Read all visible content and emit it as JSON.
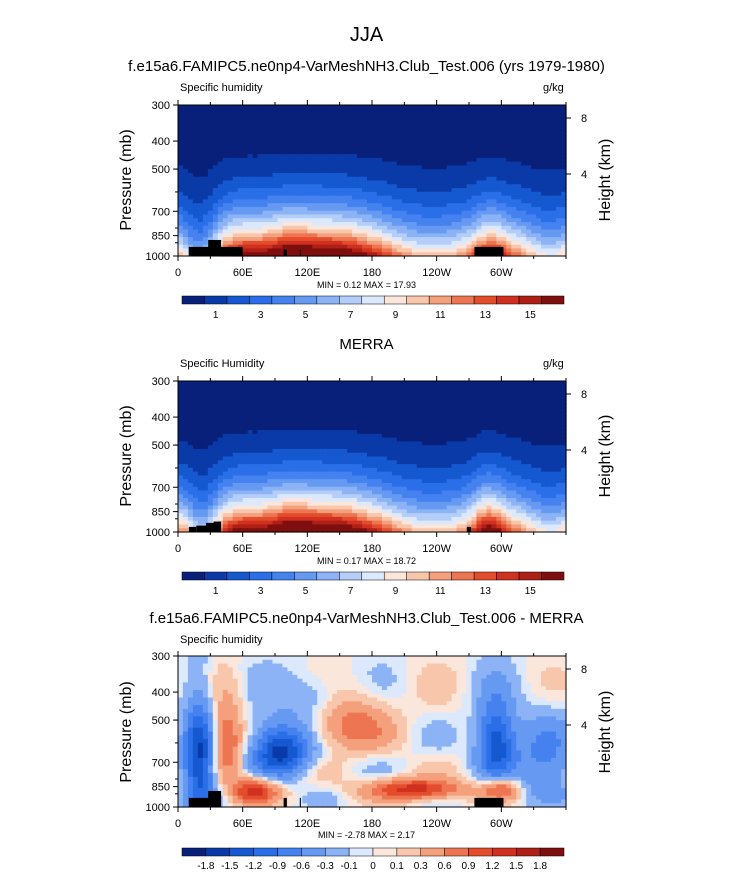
{
  "figure": {
    "title": "JJA"
  },
  "colors": {
    "land": "#000000",
    "abs_levels": [
      0,
      1,
      2,
      3,
      4,
      5,
      6,
      7,
      8,
      9,
      10,
      11,
      12,
      13,
      14,
      15,
      16
    ],
    "abs_palette": [
      "#08207a",
      "#0a3aa8",
      "#1558d0",
      "#2a6ee8",
      "#4582f0",
      "#6699f2",
      "#8cb3f5",
      "#b4cef9",
      "#dce8fc",
      "#fbe6dc",
      "#f8c6ab",
      "#f4a07c",
      "#ee7552",
      "#e44d2c",
      "#cf3020",
      "#ae1f16",
      "#7f0f0e"
    ],
    "diff_levels": [
      -1.8,
      -1.5,
      -1.2,
      -0.9,
      -0.6,
      -0.3,
      -0.1,
      0,
      0.1,
      0.3,
      0.6,
      0.9,
      1.2,
      1.5,
      1.8
    ],
    "diff_palette": [
      "#08207a",
      "#0a3aa8",
      "#1558d0",
      "#2a6ee8",
      "#4582f0",
      "#6699f2",
      "#8cb3f5",
      "#dce8fc",
      "#fbe6dc",
      "#f8c6ab",
      "#f4a07c",
      "#ee7552",
      "#e44d2c",
      "#cf3020",
      "#ae1f16",
      "#7f0f0e"
    ]
  },
  "panels": [
    {
      "id": "model",
      "title": "f.e15a6.FAMIPC5.ne0np4-VarMeshNH3.Club_Test.006 (yrs 1979-1980)",
      "left_label": "Specific humidity",
      "right_label": "g/kg",
      "y_title": "Pressure (mb)",
      "y2_title": "Height (km)",
      "y_ticks": [
        "300",
        "400",
        "500",
        "700",
        "850",
        "1000"
      ],
      "y2_ticks": [
        "8",
        "4"
      ],
      "x_ticks": [
        "0",
        "60E",
        "120E",
        "180",
        "120W",
        "60W"
      ],
      "min_max": "MIN =  0.12  MAX =  17.93",
      "colorbar_labels": [
        "1",
        "3",
        "5",
        "7",
        "9",
        "11",
        "13",
        "15"
      ]
    },
    {
      "id": "obs",
      "title": "MERRA",
      "left_label": "Specific Humidity",
      "right_label": "g/kg",
      "y_title": "Pressure (mb)",
      "y2_title": "Height (km)",
      "y_ticks": [
        "300",
        "400",
        "500",
        "700",
        "850",
        "1000"
      ],
      "y2_ticks": [
        "8",
        "4"
      ],
      "x_ticks": [
        "0",
        "60E",
        "120E",
        "180",
        "120W",
        "60W"
      ],
      "min_max": "MIN =  0.17  MAX =  18.72",
      "colorbar_labels": [
        "1",
        "3",
        "5",
        "7",
        "9",
        "11",
        "13",
        "15"
      ]
    },
    {
      "id": "diff",
      "title": "f.e15a6.FAMIPC5.ne0np4-VarMeshNH3.Club_Test.006 - MERRA",
      "left_label": "Specific humidity",
      "right_label": "",
      "y_title": "Pressure (mb)",
      "y2_title": "Height (km)",
      "y_ticks": [
        "300",
        "400",
        "500",
        "700",
        "850",
        "1000"
      ],
      "y2_ticks": [
        "8",
        "4"
      ],
      "x_ticks": [
        "0",
        "60E",
        "120E",
        "180",
        "120W",
        "60W"
      ],
      "min_max": "MIN =  -2.78  MAX =  2.17",
      "colorbar_labels": [
        "-1.8",
        "-1.5",
        "-1.2",
        "-0.9",
        "-0.6",
        "-0.3",
        "-0.1",
        "0",
        "0.1",
        "0.3",
        "0.6",
        "0.9",
        "1.2",
        "1.5",
        "1.8"
      ]
    }
  ],
  "chart_data": [
    {
      "type": "heatmap",
      "title": "f.e15a6.FAMIPC5.ne0np4-VarMeshNH3.Club_Test.006 (yrs 1979-1980)",
      "variable": "Specific humidity",
      "units": "g/kg",
      "x_ticks": [
        "0",
        "60E",
        "120E",
        "180",
        "120W",
        "60W"
      ],
      "xlim": [
        0,
        360
      ],
      "ylabel": "Pressure (mb)",
      "y_ticks": [
        300,
        400,
        500,
        700,
        850,
        1000
      ],
      "ylim": [
        1000,
        300
      ],
      "y2label": "Height (km)",
      "y2_ticks": [
        8,
        4
      ],
      "min": 0.12,
      "max": 17.93,
      "levels": [
        1,
        2,
        3,
        4,
        5,
        6,
        7,
        8,
        9,
        10,
        11,
        12,
        13,
        14,
        15,
        16
      ],
      "colorbar_labels": [
        1,
        3,
        5,
        7,
        9,
        11,
        13,
        15
      ]
    },
    {
      "type": "heatmap",
      "title": "MERRA",
      "variable": "Specific Humidity",
      "units": "g/kg",
      "x_ticks": [
        "0",
        "60E",
        "120E",
        "180",
        "120W",
        "60W"
      ],
      "xlim": [
        0,
        360
      ],
      "ylabel": "Pressure (mb)",
      "y_ticks": [
        300,
        400,
        500,
        700,
        850,
        1000
      ],
      "ylim": [
        1000,
        300
      ],
      "y2label": "Height (km)",
      "y2_ticks": [
        8,
        4
      ],
      "min": 0.17,
      "max": 18.72,
      "levels": [
        1,
        2,
        3,
        4,
        5,
        6,
        7,
        8,
        9,
        10,
        11,
        12,
        13,
        14,
        15,
        16
      ],
      "colorbar_labels": [
        1,
        3,
        5,
        7,
        9,
        11,
        13,
        15
      ]
    },
    {
      "type": "heatmap",
      "title": "f.e15a6.FAMIPC5.ne0np4-VarMeshNH3.Club_Test.006 - MERRA",
      "variable": "Specific humidity",
      "x_ticks": [
        "0",
        "60E",
        "120E",
        "180",
        "120W",
        "60W"
      ],
      "xlim": [
        0,
        360
      ],
      "ylabel": "Pressure (mb)",
      "y_ticks": [
        300,
        400,
        500,
        700,
        850,
        1000
      ],
      "ylim": [
        1000,
        300
      ],
      "y2label": "Height (km)",
      "y2_ticks": [
        8,
        4
      ],
      "min": -2.78,
      "max": 2.17,
      "levels": [
        -1.8,
        -1.5,
        -1.2,
        -0.9,
        -0.6,
        -0.3,
        -0.1,
        0,
        0.1,
        0.3,
        0.6,
        0.9,
        1.2,
        1.5,
        1.8
      ],
      "colorbar_labels": [
        -1.8,
        -1.5,
        -1.2,
        -0.9,
        -0.6,
        -0.3,
        -0.1,
        0,
        0.1,
        0.3,
        0.6,
        0.9,
        1.2,
        1.5,
        1.8
      ]
    }
  ]
}
